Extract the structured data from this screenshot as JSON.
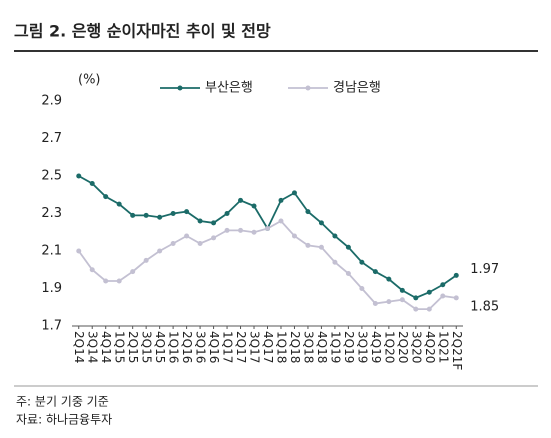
{
  "chart_data": {
    "type": "line",
    "title": "그림 2. 은행 순이자마진 추이 및 전망",
    "unit_label": "(%)",
    "categories": [
      "2Q14",
      "3Q14",
      "4Q14",
      "1Q15",
      "2Q15",
      "3Q15",
      "4Q15",
      "1Q16",
      "2Q16",
      "3Q16",
      "4Q16",
      "1Q17",
      "2Q17",
      "3Q17",
      "4Q17",
      "1Q18",
      "2Q18",
      "3Q18",
      "4Q18",
      "1Q19",
      "2Q19",
      "3Q19",
      "4Q19",
      "1Q20",
      "2Q20",
      "3Q20",
      "4Q20",
      "1Q21",
      "2Q21F"
    ],
    "series": [
      {
        "name": "부산은행",
        "color": "#1b6b68",
        "values": [
          2.5,
          2.46,
          2.39,
          2.35,
          2.29,
          2.29,
          2.28,
          2.3,
          2.31,
          2.26,
          2.25,
          2.3,
          2.37,
          2.34,
          2.22,
          2.37,
          2.41,
          2.31,
          2.25,
          2.18,
          2.12,
          2.04,
          1.99,
          1.95,
          1.89,
          1.85,
          1.88,
          1.92,
          1.97
        ]
      },
      {
        "name": "경남은행",
        "color": "#c3c0d2",
        "values": [
          2.1,
          2.0,
          1.94,
          1.94,
          1.99,
          2.05,
          2.1,
          2.14,
          2.18,
          2.14,
          2.17,
          2.21,
          2.21,
          2.2,
          2.22,
          2.26,
          2.18,
          2.13,
          2.12,
          2.04,
          1.98,
          1.9,
          1.82,
          1.83,
          1.84,
          1.79,
          1.79,
          1.86,
          1.85
        ]
      }
    ],
    "ylim": [
      1.7,
      2.9
    ],
    "yticks": [
      1.7,
      1.9,
      2.1,
      2.3,
      2.5,
      2.7,
      2.9
    ],
    "grid": false,
    "legend": "top",
    "notes": [
      "주: 분기 기중 기준",
      "자료: 하나금융투자"
    ]
  }
}
